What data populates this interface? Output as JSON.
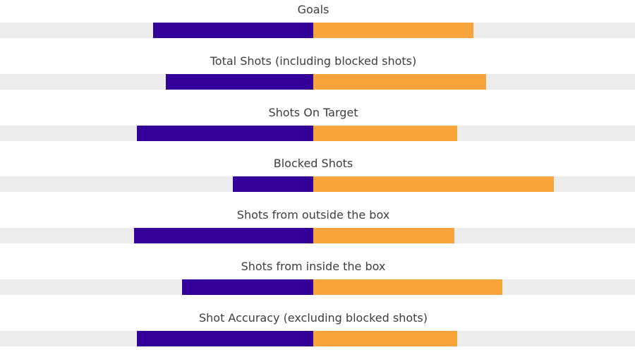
{
  "colors": {
    "home": "#330099",
    "away": "#f7a43a",
    "track": "#ececec",
    "label": "#3d3d3d"
  },
  "chart_data": {
    "type": "bar",
    "orientation": "diverging-horizontal",
    "categories": [
      "Goals",
      "Total Shots (including blocked shots)",
      "Shots On Target",
      "Blocked Shots",
      "Shots from outside the box",
      "Shots from inside the box",
      "Shot Accuracy (excluding blocked shots)"
    ],
    "series": [
      {
        "side": "left",
        "color": "#330099",
        "values": [
          0.5,
          0.46,
          0.55,
          0.25,
          0.56,
          0.41,
          0.55
        ]
      },
      {
        "side": "right",
        "color": "#f7a43a",
        "values": [
          0.5,
          0.54,
          0.45,
          0.75,
          0.44,
          0.59,
          0.45
        ]
      }
    ],
    "scale": "share of total per stat",
    "xlim": [
      -1,
      1
    ],
    "grid": false,
    "legend": "none"
  }
}
